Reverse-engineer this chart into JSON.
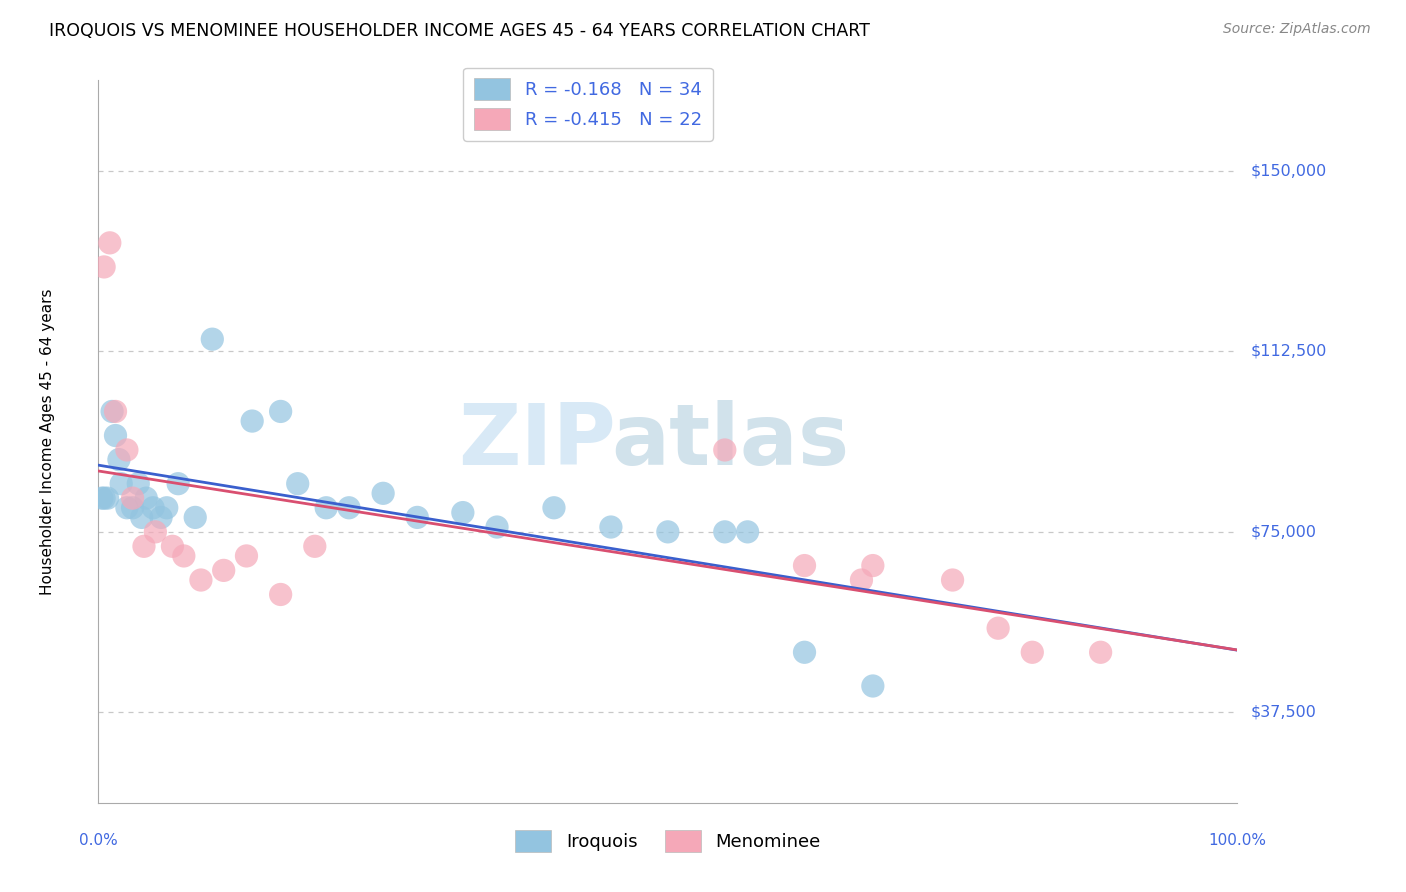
{
  "title": "IROQUOIS VS MENOMINEE HOUSEHOLDER INCOME AGES 45 - 64 YEARS CORRELATION CHART",
  "source": "Source: ZipAtlas.com",
  "ylabel": "Householder Income Ages 45 - 64 years",
  "yticks": [
    37500,
    75000,
    112500,
    150000
  ],
  "ytick_labels": [
    "$37,500",
    "$75,000",
    "$112,500",
    "$150,000"
  ],
  "xlim": [
    0.0,
    100.0
  ],
  "ylim": [
    18750,
    168750
  ],
  "iroquois_color": "#93c4e0",
  "menominee_color": "#f5a8b8",
  "iroquois_line_color": "#3a5fcd",
  "menominee_line_color": "#d94f70",
  "legend1_label": "R = -0.168   N = 34",
  "legend2_label": "R = -0.415   N = 22",
  "iroquois_x": [
    0.3,
    0.5,
    0.8,
    1.2,
    1.5,
    1.8,
    2.0,
    2.5,
    3.0,
    3.5,
    3.8,
    4.2,
    4.8,
    5.5,
    6.0,
    7.0,
    8.5,
    10.0,
    13.5,
    16.0,
    17.5,
    20.0,
    22.0,
    25.0,
    28.0,
    32.0,
    35.0,
    40.0,
    45.0,
    50.0,
    55.0,
    57.0,
    62.0,
    68.0
  ],
  "iroquois_y": [
    82000,
    82000,
    82000,
    100000,
    95000,
    90000,
    85000,
    80000,
    80000,
    85000,
    78000,
    82000,
    80000,
    78000,
    80000,
    85000,
    78000,
    115000,
    98000,
    100000,
    85000,
    80000,
    80000,
    83000,
    78000,
    79000,
    76000,
    80000,
    76000,
    75000,
    75000,
    75000,
    50000,
    43000
  ],
  "menominee_x": [
    0.5,
    1.0,
    1.5,
    2.5,
    3.0,
    4.0,
    5.0,
    6.5,
    7.5,
    9.0,
    11.0,
    13.0,
    16.0,
    19.0,
    55.0,
    62.0,
    67.0,
    68.0,
    75.0,
    79.0,
    82.0,
    88.0
  ],
  "menominee_y": [
    130000,
    135000,
    100000,
    92000,
    82000,
    72000,
    75000,
    72000,
    70000,
    65000,
    67000,
    70000,
    62000,
    72000,
    92000,
    68000,
    65000,
    68000,
    65000,
    55000,
    50000,
    50000
  ],
  "background_color": "#ffffff",
  "grid_color": "#c8c8c8",
  "text_blue": "#4169e1"
}
